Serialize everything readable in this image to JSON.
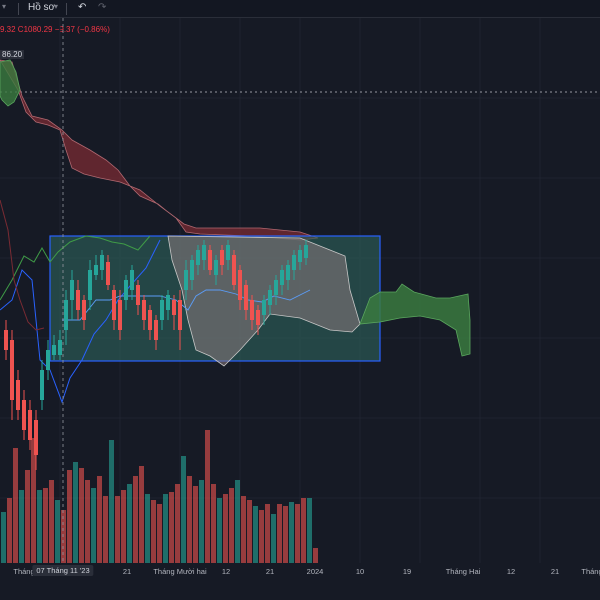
{
  "toolbar": {
    "profile_label": "Hồ sơ",
    "undo_icon": "undo-icon",
    "redo_icon": "redo-icon",
    "chevron_icon": "chevron-down-icon"
  },
  "legend": {
    "text": "9.32  C1080.29  −9.37 (−0.86%)"
  },
  "price_label": "86.20",
  "xaxis": {
    "ticks": [
      "Tháng",
      "07 Tháng 11 '23",
      "21",
      "Tháng Mười hai",
      "12",
      "21",
      "2024",
      "10",
      "19",
      "Tháng Hai",
      "12",
      "21",
      "Tháng"
    ],
    "active_index": 1
  },
  "colors": {
    "up": "#26a69a",
    "down": "#ef5350",
    "cloud_bear": "#7a2b33",
    "cloud_bull": "#3a7a3f",
    "rectangle": "#2d5e57",
    "rectangle_border": "#2962ff",
    "kijun": "#2962ff",
    "chikou": "#3f9b47"
  }
}
